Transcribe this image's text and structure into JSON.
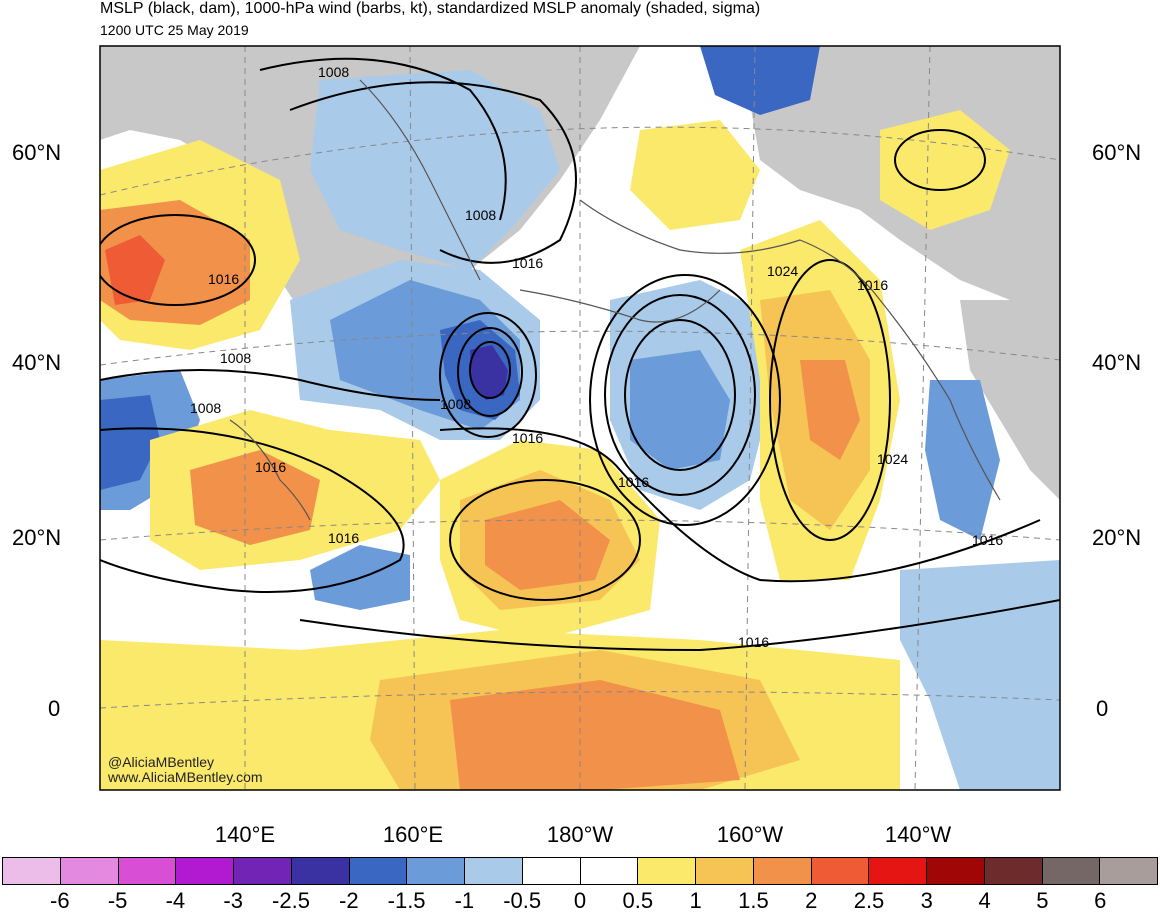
{
  "header": {
    "title": "MSLP (black, dam), 1000-hPa wind (barbs, kt), standardized MSLP anomaly (shaded, sigma)",
    "subtitle": "1200 UTC 25 May 2019"
  },
  "credits": [
    "@AliciaMBentley",
    "www.AliciaMBentley.com"
  ],
  "lat_labels": [
    "60°N",
    "40°N",
    "20°N",
    "0"
  ],
  "lon_labels": [
    "140°E",
    "160°E",
    "180°W",
    "160°W",
    "140°W"
  ],
  "contour_labels": [
    "1008",
    "1008",
    "1016",
    "1008",
    "1008",
    "1016",
    "1016",
    "1008",
    "1016",
    "1016",
    "1016",
    "1024",
    "1016",
    "1024",
    "1016",
    "1016"
  ],
  "colorbar": {
    "unit": "sigma",
    "ticks": [
      "-6",
      "-5",
      "-4",
      "-3",
      "-2.5",
      "-2",
      "-1.5",
      "-1",
      "-0.5",
      "0",
      "0.5",
      "1",
      "1.5",
      "2",
      "2.5",
      "3",
      "4",
      "5",
      "6"
    ],
    "colors": [
      "#ebbde8",
      "#e38ae0",
      "#d84fd6",
      "#b21ad1",
      "#7224b5",
      "#3a32a3",
      "#3a67c2",
      "#6b9bd8",
      "#a9cbe9",
      "#ffffff",
      "#ffffff",
      "#fbe96b",
      "#f6c355",
      "#f2914a",
      "#ee5b35",
      "#e41512",
      "#a10607",
      "#6d2b2c",
      "#746766",
      "#a99d9c"
    ]
  },
  "map": {
    "colors": {
      "land_missing": "#c8c8c8",
      "contour": "#000000",
      "coastline": "#555555",
      "gridline": "#888888"
    }
  }
}
